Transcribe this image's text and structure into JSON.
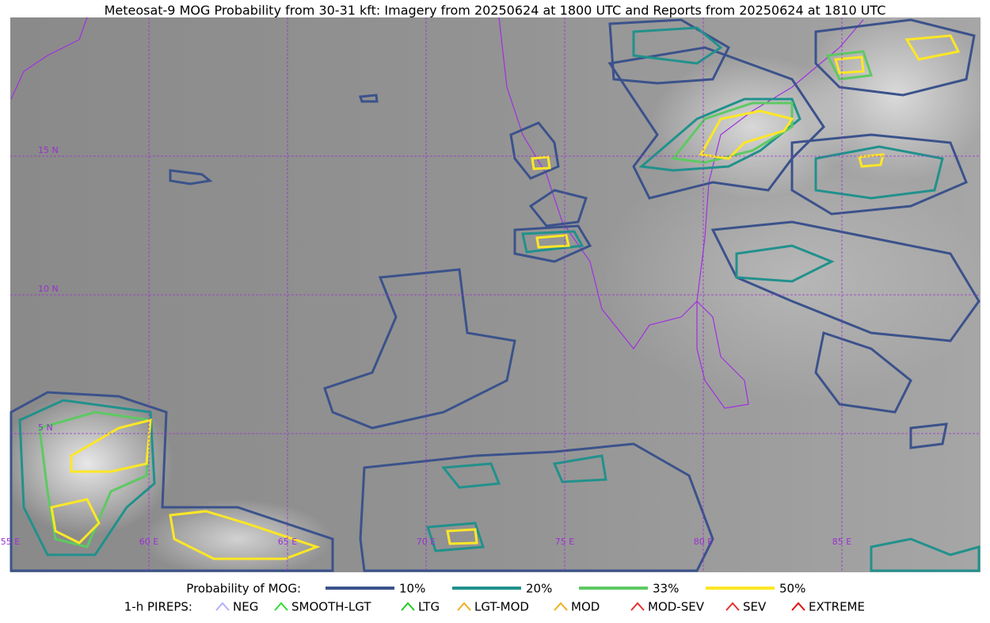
{
  "title": "Meteosat-9 MOG Probability from 30-31 kft: Imagery from 20250624 at 1800 UTC and Reports from 20250624 at 1810 UTC",
  "map": {
    "lat_labels": [
      "15 N",
      "10 N",
      "5 N"
    ],
    "lon_labels": [
      "55 E",
      "60 E",
      "65 E",
      "70 E",
      "75 E",
      "80 E",
      "85 E"
    ]
  },
  "legend": {
    "probability_title": "Probability of MOG:",
    "probability": [
      {
        "label": "10%",
        "color": "#3b528b"
      },
      {
        "label": "20%",
        "color": "#21918c"
      },
      {
        "label": "33%",
        "color": "#5ec962"
      },
      {
        "label": "50%",
        "color": "#fde725"
      }
    ],
    "pireps_title": "1-h PIREPS:",
    "pireps": [
      {
        "label": "NEG",
        "color": "#b0b0ff"
      },
      {
        "label": "SMOOTH-LGT",
        "color": "#33dd33"
      },
      {
        "label": "LTG",
        "color": "#22cc22"
      },
      {
        "label": "LGT-MOD",
        "color": "#f0b020"
      },
      {
        "label": "MOD",
        "color": "#f0b020"
      },
      {
        "label": "MOD-SEV",
        "color": "#e83030"
      },
      {
        "label": "SEV",
        "color": "#e83030"
      },
      {
        "label": "EXTREME",
        "color": "#e01010"
      }
    ]
  }
}
